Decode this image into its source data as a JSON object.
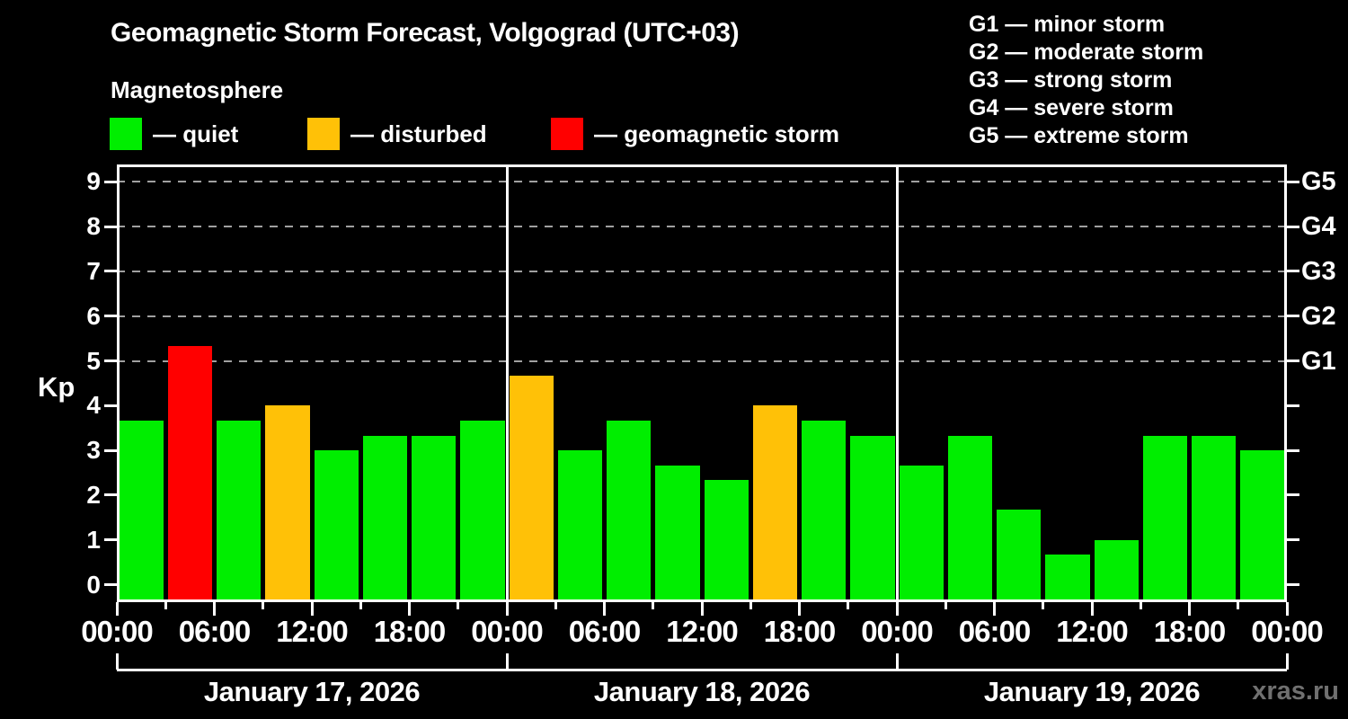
{
  "header": {
    "title": "Geomagnetic Storm Forecast, Volgograd (UTC+03)",
    "subtitle": "Magnetosphere"
  },
  "legend": {
    "items": [
      {
        "status": "quiet",
        "label": "— quiet"
      },
      {
        "status": "disturbed",
        "label": "— disturbed"
      },
      {
        "status": "storm",
        "label": "— geomagnetic storm"
      }
    ]
  },
  "g_legend": {
    "items": [
      "G1 — minor storm",
      "G2 — moderate storm",
      "G3 — strong storm",
      "G4 — severe storm",
      "G5 — extreme storm"
    ]
  },
  "chart_data": {
    "type": "bar",
    "title": "Geomagnetic Storm Forecast, Volgograd (UTC+03)",
    "subtitle": "Magnetosphere",
    "ylabel": "Kp",
    "ylim": [
      0,
      9
    ],
    "y_ticks": [
      0,
      1,
      2,
      3,
      4,
      5,
      6,
      7,
      8,
      9
    ],
    "gridlines": [
      5,
      6,
      7,
      8,
      9
    ],
    "grid_style": "dashed horizontal lines at storm levels only",
    "right_axis_labels": [
      {
        "text": "G1",
        "value": 5
      },
      {
        "text": "G2",
        "value": 6
      },
      {
        "text": "G3",
        "value": 7
      },
      {
        "text": "G4",
        "value": 8
      },
      {
        "text": "G5",
        "value": 9
      }
    ],
    "interval_hours": 3,
    "bars_per_day": 8,
    "x_major_labels": [
      "00:00",
      "06:00",
      "12:00",
      "18:00"
    ],
    "colors": {
      "quiet": "#00ee00",
      "disturbed": "#ffc107",
      "storm": "#ff0000",
      "axis": "#ffffff",
      "grid": "#a0a0a0",
      "background": "#000000",
      "text": "#ffffff",
      "watermark": "#707070"
    },
    "days": [
      {
        "date": "January 17, 2026",
        "values": [
          3.67,
          5.33,
          3.67,
          4.0,
          3.0,
          3.33,
          3.33,
          3.67
        ],
        "statuses": [
          "quiet",
          "storm",
          "quiet",
          "disturbed",
          "quiet",
          "quiet",
          "quiet",
          "quiet"
        ]
      },
      {
        "date": "January 18, 2026",
        "values": [
          4.67,
          3.0,
          3.67,
          2.67,
          2.33,
          4.0,
          3.67,
          3.33
        ],
        "statuses": [
          "disturbed",
          "quiet",
          "quiet",
          "quiet",
          "quiet",
          "disturbed",
          "quiet",
          "quiet"
        ]
      },
      {
        "date": "January 19, 2026",
        "values": [
          2.67,
          3.33,
          1.67,
          0.67,
          1.0,
          3.33,
          3.33,
          3.0
        ],
        "statuses": [
          "quiet",
          "quiet",
          "quiet",
          "quiet",
          "quiet",
          "quiet",
          "quiet",
          "quiet"
        ]
      }
    ],
    "watermark": "xras.ru"
  }
}
